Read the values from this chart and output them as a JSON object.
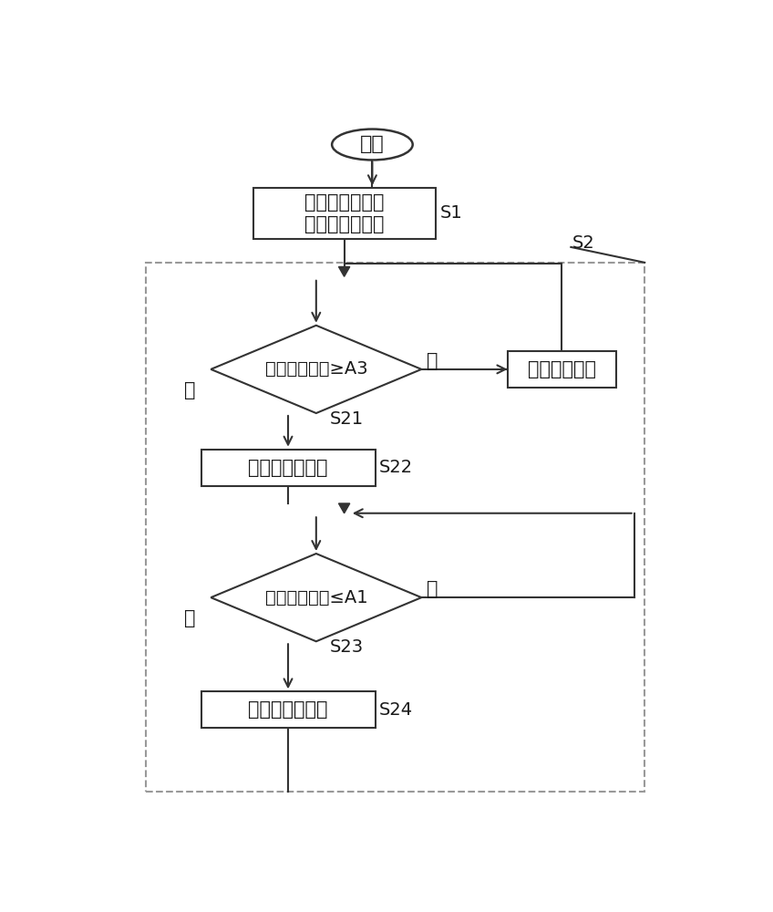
{
  "bg_color": "#ffffff",
  "line_color": "#333333",
  "dash_color": "#999999",
  "text_color": "#1a1a1a",
  "start_text": "开始",
  "box1_line1": "第一控制阀开启",
  "box1_line2": "第二控制阀关闭",
  "diamond1_text": "蓄热装置温度≥A3",
  "box2_text": "正常制冷运行",
  "box3_text": "第一控制阀关闭",
  "diamond2_text": "蓄热装置温度≤A1",
  "box4_text": "第一控制阀开启",
  "yes_text": "是",
  "no_text": "否",
  "s1_label": "S1",
  "s2_label": "S2",
  "s21_label": "S21",
  "s22_label": "S22",
  "s23_label": "S23",
  "s24_label": "S24",
  "font_size": 15,
  "small_font_size": 13,
  "label_font_size": 14
}
